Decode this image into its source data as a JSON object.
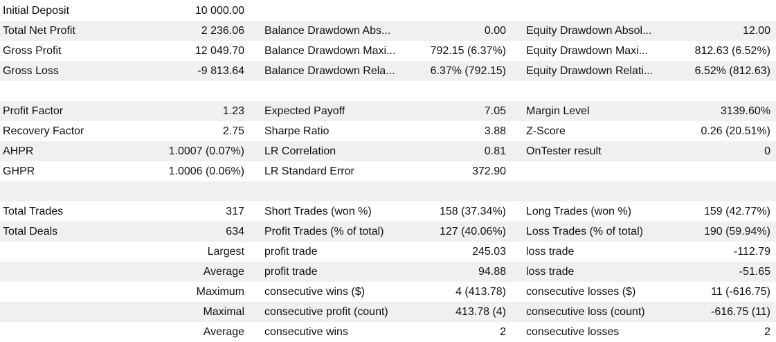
{
  "table": {
    "rows": [
      [
        "Initial Deposit",
        "10 000.00",
        null,
        null,
        null,
        null
      ],
      [
        "Total Net Profit",
        "2 236.06",
        "Balance Drawdown Abs...",
        "0.00",
        "Equity Drawdown Absol...",
        "12.00"
      ],
      [
        "Gross Profit",
        "12 049.70",
        "Balance Drawdown Maxi...",
        "792.15 (6.37%)",
        "Equity Drawdown Maxi...",
        "812.63 (6.52%)"
      ],
      [
        "Gross Loss",
        "-9 813.64",
        "Balance Drawdown Rela...",
        "6.37% (792.15)",
        "Equity Drawdown Relati...",
        "6.52% (812.63)"
      ],
      [],
      [
        "Profit Factor",
        "1.23",
        "Expected Payoff",
        "7.05",
        "Margin Level",
        "3139.60%"
      ],
      [
        "Recovery Factor",
        "2.75",
        "Sharpe Ratio",
        "3.88",
        "Z-Score",
        "0.26 (20.51%)"
      ],
      [
        "AHPR",
        "1.0007 (0.07%)",
        "LR Correlation",
        "0.81",
        "OnTester result",
        "0"
      ],
      [
        "GHPR",
        "1.0006 (0.06%)",
        "LR Standard Error",
        "372.90",
        null,
        null
      ],
      [],
      [
        "Total Trades",
        "317",
        "Short Trades (won %)",
        "158 (37.34%)",
        "Long Trades (won %)",
        "159 (42.77%)"
      ],
      [
        "Total Deals",
        "634",
        "Profit Trades (% of total)",
        "127 (40.06%)",
        "Loss Trades (% of total)",
        "190 (59.94%)"
      ],
      [
        null,
        "Largest",
        "profit trade",
        "245.03",
        "loss trade",
        "-112.79"
      ],
      [
        null,
        "Average",
        "profit trade",
        "94.88",
        "loss trade",
        "-51.65"
      ],
      [
        null,
        "Maximum",
        "consecutive wins ($)",
        "4 (413.78)",
        "consecutive losses ($)",
        "11 (-616.75)"
      ],
      [
        null,
        "Maximal",
        "consecutive profit (count)",
        "413.78 (4)",
        "consecutive loss (count)",
        "-616.75 (11)"
      ],
      [
        null,
        "Average",
        "consecutive wins",
        "2",
        "consecutive losses",
        "2"
      ]
    ]
  }
}
